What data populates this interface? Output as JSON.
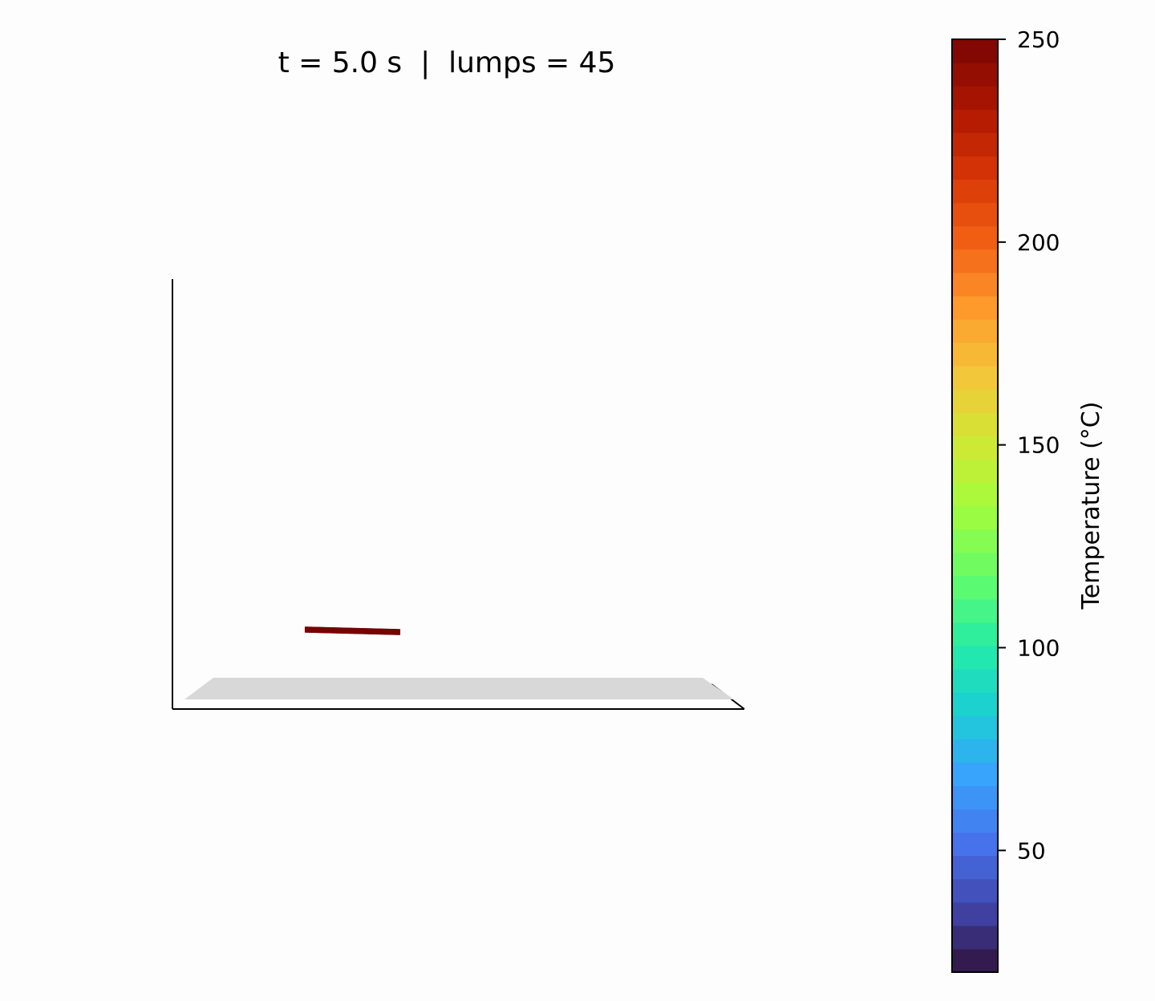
{
  "chart_data": {
    "type": "scatter",
    "title": "t = 5.0 s  |  lumps = 45",
    "time_s": 5.0,
    "lumps": 45,
    "grid": false,
    "view": "3d",
    "point_temperature_c": 250,
    "colorbar": {
      "label": "Temperature (°C)",
      "min": 20,
      "max": 250,
      "ticks": [
        50,
        100,
        150,
        200,
        250
      ],
      "colormap": "turbo",
      "bands": 40
    },
    "colors": {
      "floor": "#d8d8d8",
      "axis": "#000000",
      "background": "#fdfdfd"
    }
  }
}
